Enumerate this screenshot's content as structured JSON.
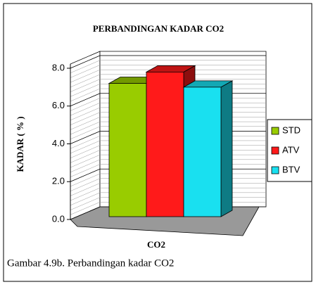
{
  "chart_data": {
    "type": "bar3d",
    "title": "PERBANDINGAN KADAR CO2",
    "y_label": "KADAR ( % )",
    "categories": [
      "CO2"
    ],
    "series": [
      {
        "name": "STD",
        "color": "#99cc00",
        "values": [
          7.2
        ]
      },
      {
        "name": "ATV",
        "color": "#ff1a1a",
        "values": [
          7.8
        ]
      },
      {
        "name": "BTV",
        "color": "#19e0f0",
        "values": [
          7.0
        ]
      }
    ],
    "ylim": [
      0,
      8
    ],
    "yticks": [
      {
        "value": 0,
        "label": "0.0"
      },
      {
        "value": 2,
        "label": "2.0"
      },
      {
        "value": 4,
        "label": "4.0"
      },
      {
        "value": 6,
        "label": "6.0"
      },
      {
        "value": 8,
        "label": "8.0"
      }
    ],
    "grid": true,
    "legend": "right",
    "caption": "Gambar 4.9b. Perbandingan kadar CO2"
  }
}
